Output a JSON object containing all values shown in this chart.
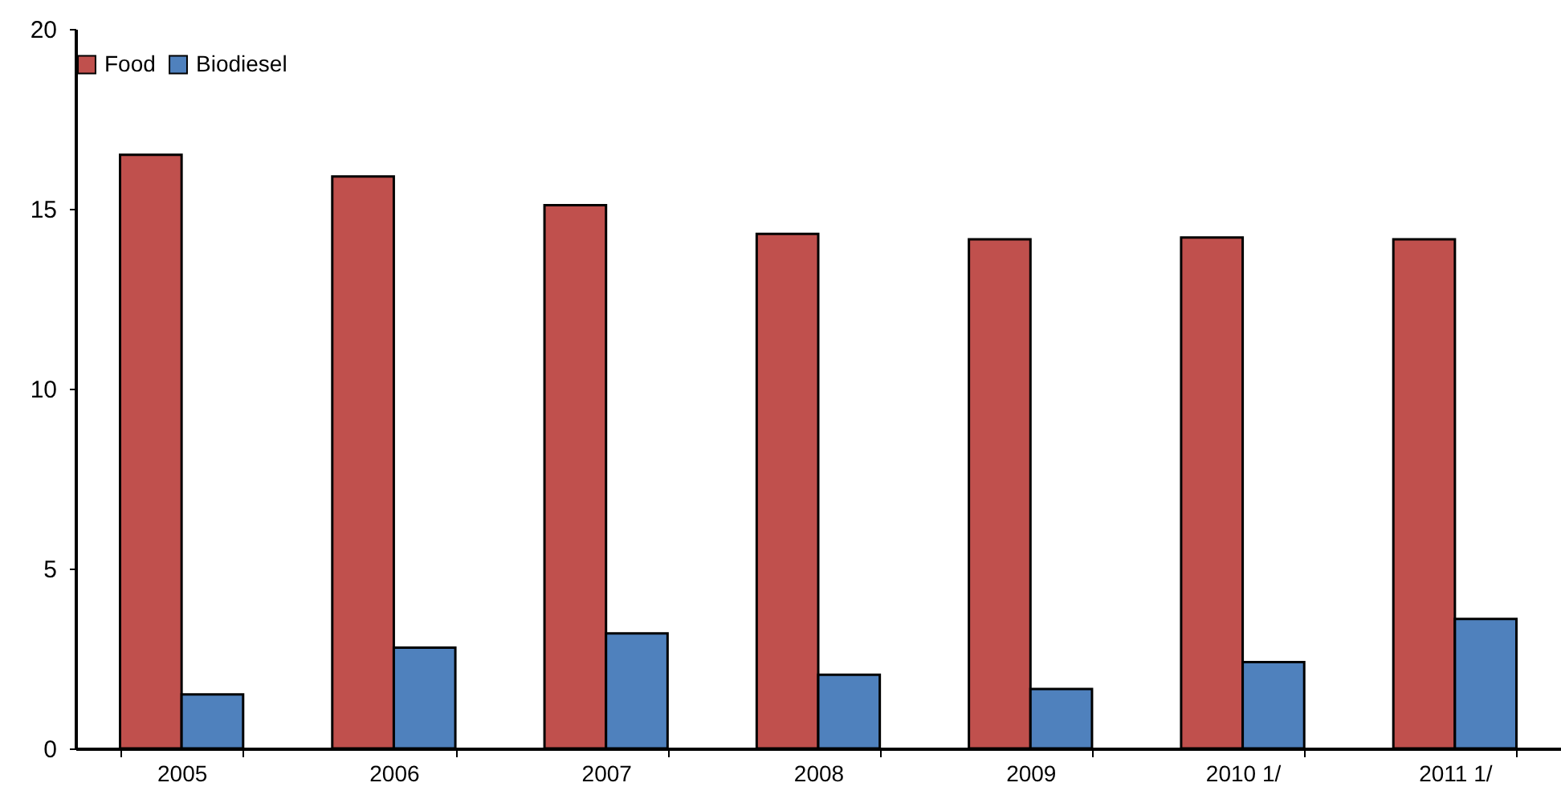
{
  "chart_data": {
    "type": "bar",
    "categories": [
      "2005",
      "2006",
      "2007",
      "2008",
      "2009",
      "2010 1/",
      "2011 1/"
    ],
    "series": [
      {
        "name": "Food",
        "color": "#c0504d",
        "values": [
          16.5,
          15.9,
          15.1,
          14.3,
          14.15,
          14.2,
          14.15
        ]
      },
      {
        "name": "Biodiesel",
        "color": "#4f81bd",
        "values": [
          1.5,
          2.8,
          3.2,
          2.05,
          1.65,
          2.4,
          3.6
        ]
      }
    ],
    "ylim": [
      0,
      20
    ],
    "yticks": [
      0,
      5,
      10,
      15,
      20
    ],
    "grid": false,
    "legend": "top"
  }
}
